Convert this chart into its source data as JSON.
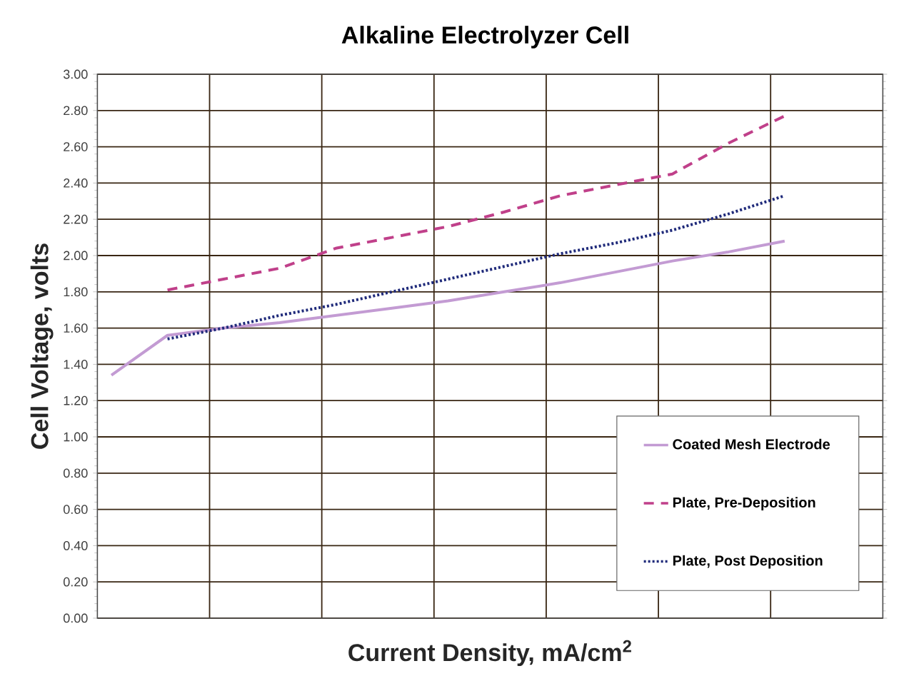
{
  "chart_data": {
    "type": "line",
    "title": "Alkaline Electrolyzer Cell",
    "xlabel": "Current Density, mA/cm$^{2}$",
    "ylabel": "Cell Voltage, volts",
    "categories": [
      null,
      null,
      null,
      null,
      null,
      null,
      null,
      null,
      null,
      null,
      null,
      null,
      null
    ],
    "series": [
      {
        "name": "Coated Mesh Electrode",
        "color": "#c39bd3",
        "line_style": "solid",
        "values": [
          1.34,
          1.56,
          1.6,
          1.63,
          1.67,
          1.71,
          1.75,
          1.8,
          1.85,
          1.91,
          1.97,
          2.02,
          2.08
        ]
      },
      {
        "name": "Plate, Pre-Deposition",
        "color": "#c0408a",
        "line_style": "dashed",
        "values": [
          null,
          1.81,
          1.87,
          1.93,
          2.04,
          2.1,
          2.16,
          2.24,
          2.33,
          2.39,
          2.45,
          2.62,
          2.77
        ]
      },
      {
        "name": "Plate, Post Deposition",
        "color": "#1f2a7a",
        "line_style": "dotted",
        "values": [
          null,
          1.54,
          1.6,
          1.67,
          1.73,
          1.8,
          1.87,
          1.94,
          2.01,
          2.07,
          2.14,
          2.23,
          2.33
        ]
      }
    ],
    "ylim": [
      0,
      3
    ],
    "yticks": [
      {
        "value": 0,
        "label": "0.00"
      },
      {
        "value": 0.2,
        "label": "0.20"
      },
      {
        "value": 0.4,
        "label": "0.40"
      },
      {
        "value": 0.6,
        "label": "0.60"
      },
      {
        "value": 0.8,
        "label": "0.80"
      },
      {
        "value": 1,
        "label": "1.00"
      },
      {
        "value": 1.2,
        "label": "1.20"
      },
      {
        "value": 1.4,
        "label": "1.40"
      },
      {
        "value": 1.6,
        "label": "1.60"
      },
      {
        "value": 1.8,
        "label": "1.80"
      },
      {
        "value": 2,
        "label": "2.00"
      },
      {
        "value": 2.2,
        "label": "2.20"
      },
      {
        "value": 2.4,
        "label": "2.40"
      },
      {
        "value": 2.6,
        "label": "2.60"
      },
      {
        "value": 2.8,
        "label": "2.80"
      },
      {
        "value": 3,
        "label": "3.00"
      }
    ],
    "grid": true,
    "legend": "bottom right",
    "marker": "none",
    "tick_labels": "y"
  }
}
